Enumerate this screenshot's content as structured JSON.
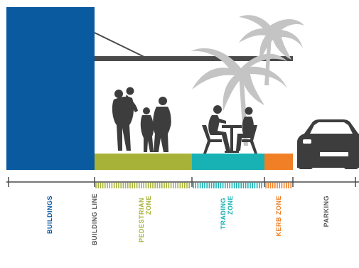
{
  "zones": [
    {
      "id": "buildings",
      "label": "BUILDINGS",
      "color": "#0a5aa0"
    },
    {
      "id": "building-line",
      "label": "BUILDING LINE",
      "color": "#555555"
    },
    {
      "id": "pedestrian",
      "label_line1": "PEDESTRIAN",
      "label_line2": "ZONE",
      "color": "#a7b238"
    },
    {
      "id": "trading",
      "label_line1": "TRADING",
      "label_line2": "ZONE",
      "color": "#18b2b4"
    },
    {
      "id": "kerb",
      "label": "KERB ZONE",
      "color": "#f07f25"
    },
    {
      "id": "parking",
      "label": "PARKING",
      "color": "#555555"
    }
  ],
  "colors": {
    "building": "#0a5aa0",
    "awning": "#4a4a4a",
    "silhouette": "#3d3d3d",
    "palm": "#c4c4c4",
    "axis": "#4a4a4a"
  },
  "icons": [
    "people-silhouette-icon",
    "cafe-table-icon",
    "palm-tree-icon",
    "car-icon"
  ]
}
